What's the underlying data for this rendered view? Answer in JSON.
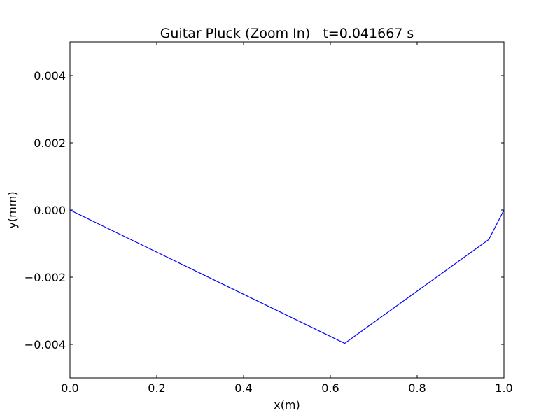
{
  "chart_data": {
    "type": "line",
    "title": "Guitar Pluck (Zoom In)   t=0.041667 s",
    "xlabel": "x(m)",
    "ylabel": "y(mm)",
    "xlim": [
      0,
      1
    ],
    "ylim": [
      -0.005,
      0.005
    ],
    "x_ticks": [
      0.0,
      0.2,
      0.4,
      0.6,
      0.8,
      1.0
    ],
    "x_tick_labels": [
      "0.0",
      "0.2",
      "0.4",
      "0.6",
      "0.8",
      "1.0"
    ],
    "y_ticks": [
      -0.004,
      -0.002,
      0.0,
      0.002,
      0.004
    ],
    "y_tick_labels": [
      "−0.004",
      "−0.002",
      "0.000",
      "0.002",
      "0.004"
    ],
    "grid": false,
    "legend": "none",
    "series": [
      {
        "color": "#0000ff",
        "x": [
          0.0,
          0.633,
          0.965,
          1.0
        ],
        "y": [
          0.0,
          -0.00397,
          -0.00088,
          0.0
        ]
      }
    ]
  }
}
